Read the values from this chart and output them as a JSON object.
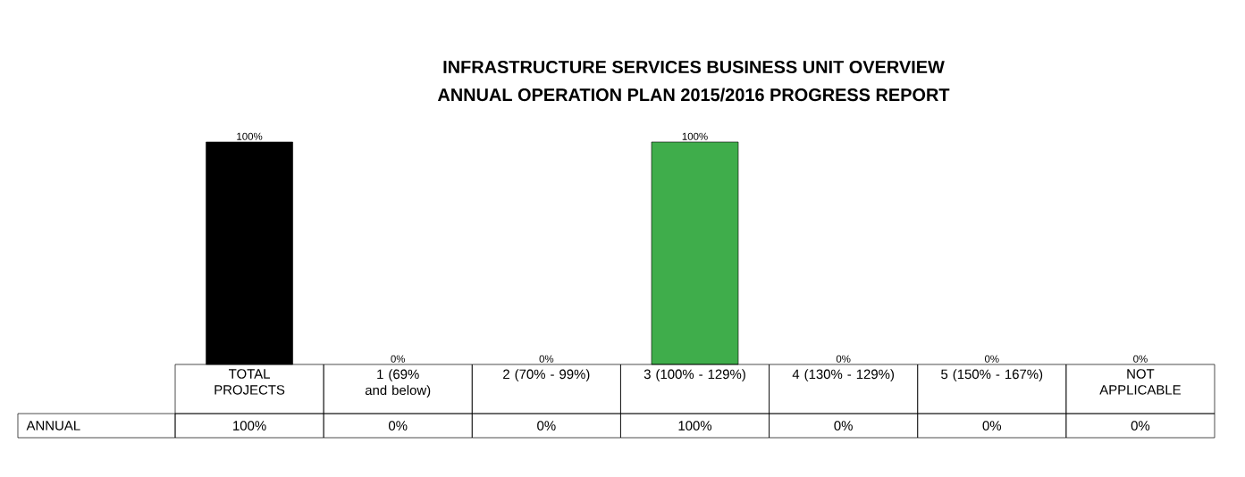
{
  "chart_data": {
    "type": "bar",
    "title": "INFRASTRUCTURE SERVICES BUSINESS UNIT OVERVIEW",
    "subtitle": "ANNUAL OPERATION PLAN 2015/2016 PROGRESS REPORT",
    "categories": [
      "TOTAL PROJECTS",
      "1 (69% and below)",
      "2 (70% - 99%)",
      "3 (100% - 129%)",
      "4 (130% - 129%)",
      "5 (150% - 167%)",
      "NOT APPLICABLE"
    ],
    "series": [
      {
        "name": "ANNUAL",
        "values": [
          100,
          0,
          0,
          100,
          0,
          0,
          0
        ],
        "value_labels": [
          "100%",
          "0%",
          "0%",
          "100%",
          "0%",
          "0%",
          "0%"
        ],
        "colors": [
          "#000000",
          "#000000",
          "#000000",
          "#3fad4b",
          "#000000",
          "#000000",
          "#000000"
        ]
      }
    ]
  }
}
